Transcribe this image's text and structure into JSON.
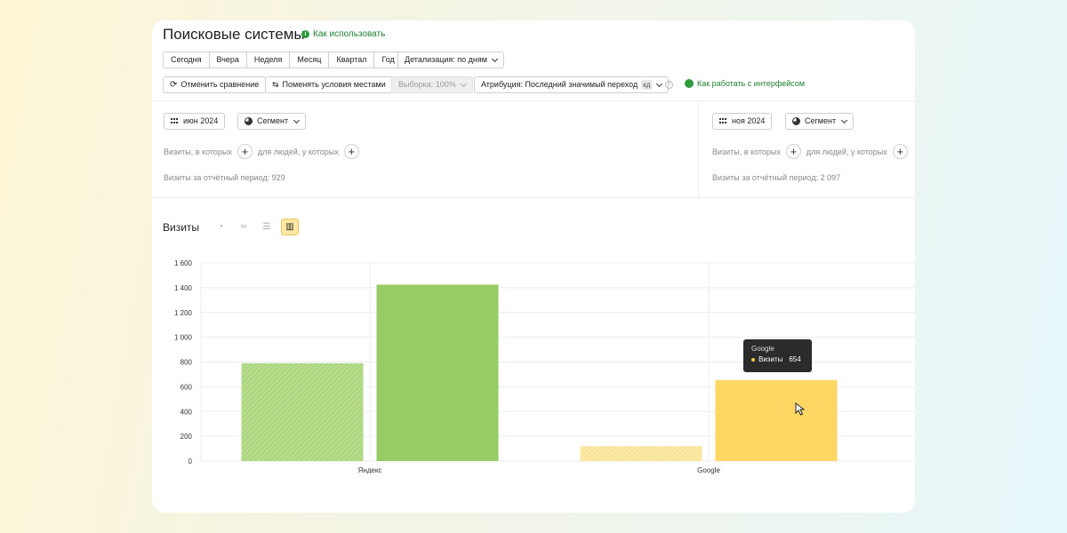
{
  "header": {
    "title": "Поисковые системы",
    "how_to": "Как использовать"
  },
  "periods": [
    "Сегодня",
    "Вчера",
    "Неделя",
    "Месяц",
    "Квартал",
    "Год"
  ],
  "detail": "Детализация: по дням",
  "toolbar": {
    "cancel_compare": "Отменить сравнение",
    "swap_conditions": "Поменять условия местами",
    "sample": "Выборка: 100%",
    "attribution": "Атрибуция: Последний значимый переход",
    "attribution_badge": "кд",
    "interface_link": "Как работать с интерфейсом"
  },
  "left_panel": {
    "date": "июн 2024",
    "segment": "Сегмент",
    "visits_filter": "Визиты, в которых",
    "people_filter": "для людей, у которых",
    "period_visits": "Визиты за отчётный период: 929"
  },
  "right_panel": {
    "date": "ноя 2024",
    "segment": "Сегмент",
    "visits_filter": "Визиты, в которых",
    "people_filter": "для людей, у которых",
    "period_visits": "Визиты за отчётный период: 2 097"
  },
  "section_title": "Визиты",
  "tooltip": {
    "title": "Google",
    "label": "Визиты",
    "value": "654"
  },
  "colors": {
    "green_light": "#a8d67a",
    "green": "#97cc64",
    "yellow_light": "#f9e394",
    "yellow": "#fdd663",
    "link": "#1e7e2e"
  },
  "chart_data": {
    "type": "bar",
    "categories": [
      "Яндекс",
      "Google"
    ],
    "series": [
      {
        "values": [
          790,
          120
        ]
      },
      {
        "values": [
          1425,
          654
        ]
      }
    ],
    "ylim": [
      0,
      1600
    ],
    "yticks": [
      "0",
      "200",
      "400",
      "600",
      "800",
      "1 000",
      "1 200",
      "1 400",
      "1 600"
    ],
    "grid": true
  }
}
